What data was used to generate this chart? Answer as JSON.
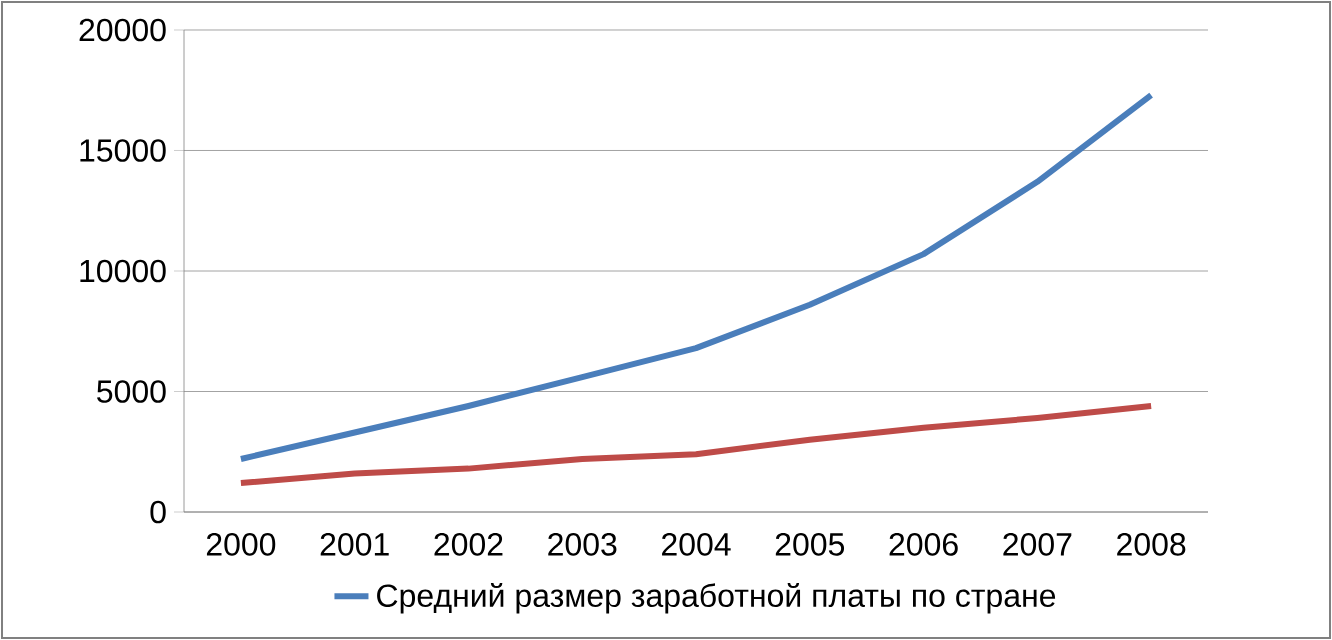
{
  "chart_data": {
    "type": "line",
    "categories": [
      "2000",
      "2001",
      "2002",
      "2003",
      "2004",
      "2005",
      "2006",
      "2007",
      "2008"
    ],
    "series": [
      {
        "name": "Средний размер заработной платы по стране",
        "color": "#4a7ebb",
        "values": [
          2200,
          3300,
          4400,
          5600,
          6800,
          8600,
          10700,
          13700,
          17300
        ]
      },
      {
        "color": "#be4b48",
        "values": [
          1200,
          1600,
          1800,
          2200,
          2400,
          3000,
          3500,
          3900,
          4400
        ]
      }
    ],
    "ylim": [
      0,
      20000
    ],
    "yticks": [
      0,
      5000,
      10000,
      15000,
      20000
    ],
    "grid": "y",
    "legend": "bottom",
    "marker": "none",
    "line_style": "solid"
  }
}
